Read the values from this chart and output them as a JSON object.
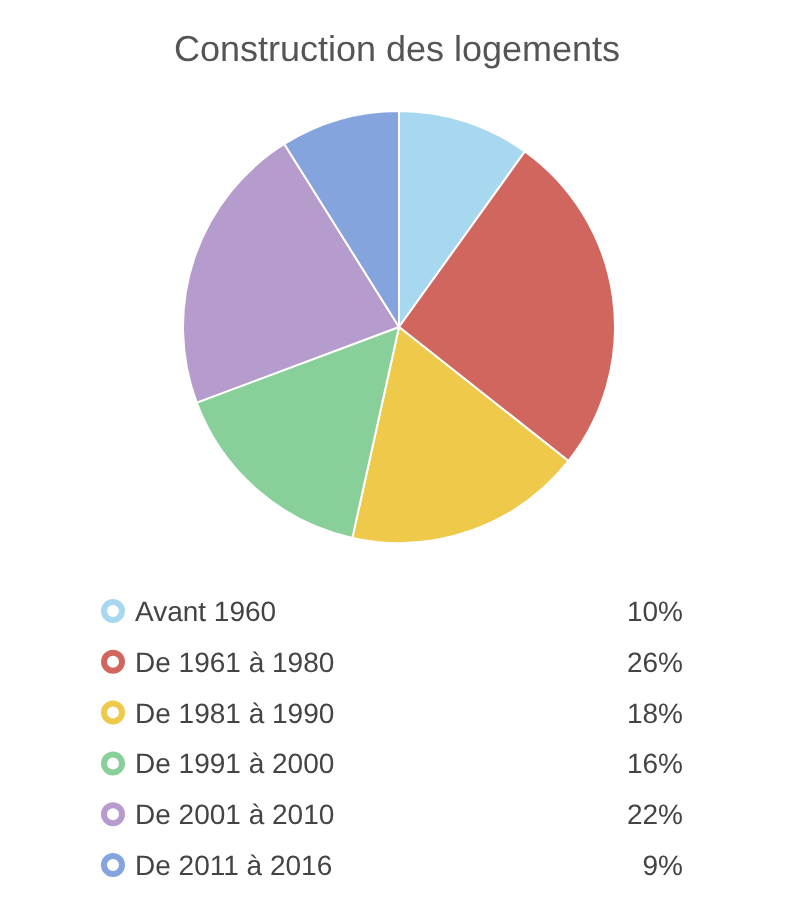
{
  "chart_data": {
    "type": "pie",
    "title": "Construction des logements",
    "categories": [
      "Avant 1960",
      "De 1961 à 1980",
      "De 1981 à 1990",
      "De 1991 à 2000",
      "De 2001 à 2010",
      "De 2011 à 2016"
    ],
    "values": [
      10,
      26,
      18,
      16,
      22,
      9
    ],
    "colors": [
      "#a8d8ef",
      "#d0665e",
      "#eec94a",
      "#88cf9a",
      "#b59ccc",
      "#85a3dc"
    ],
    "value_labels": [
      "10%",
      "26%",
      "18%",
      "16%",
      "22%",
      "9%"
    ],
    "legend": "bottom"
  }
}
